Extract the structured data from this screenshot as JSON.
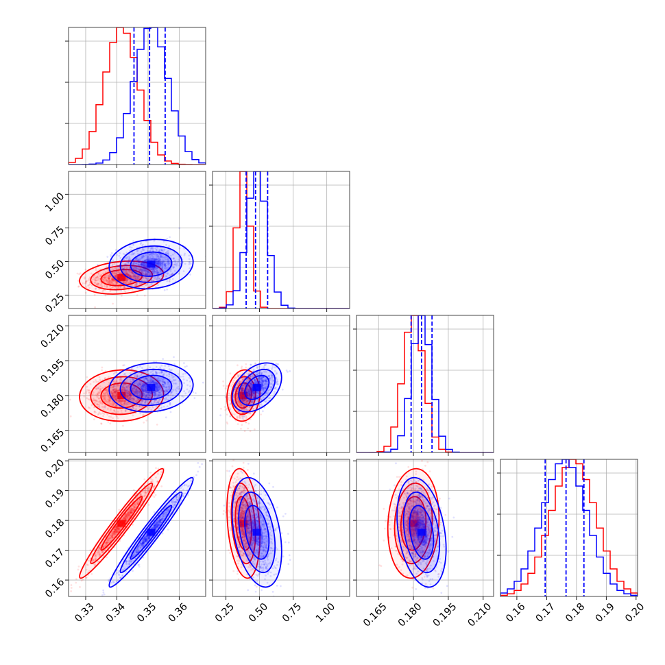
{
  "chart_data": {
    "type": "corner",
    "parameters": 4,
    "grid": true,
    "series": [
      {
        "color": "#ff0000",
        "mean": [
          0.3415,
          0.38,
          0.18,
          0.179
        ],
        "sd": [
          0.0055,
          0.05,
          0.0045,
          0.0075
        ],
        "corr": [
          [
            1,
            0.2,
            0.05,
            0.97
          ],
          [
            0.2,
            1,
            0.1,
            -0.25
          ],
          [
            0.05,
            0.1,
            1,
            0.1
          ],
          [
            0.97,
            -0.25,
            0.1,
            1
          ]
        ]
      },
      {
        "color": "#0000ff",
        "mean": [
          0.351,
          0.48,
          0.1835,
          0.176
        ],
        "sd": [
          0.0055,
          0.075,
          0.0043,
          0.0075
        ],
        "corr": [
          [
            1,
            0.1,
            0.1,
            0.97
          ],
          [
            0.1,
            1,
            0.4,
            -0.35
          ],
          [
            0.1,
            0.4,
            1,
            -0.3
          ],
          [
            0.97,
            -0.35,
            -0.3,
            1
          ]
        ]
      }
    ],
    "quantiles": [
      [
        0.3455,
        0.3505,
        0.3555
      ],
      [
        0.4,
        0.47,
        0.56
      ],
      [
        0.179,
        0.1835,
        0.188
      ],
      [
        0.1695,
        0.1765,
        0.1825
      ]
    ],
    "axes": [
      {
        "lim": [
          0.3245,
          0.3685
        ],
        "ticks": [
          0.33,
          0.34,
          0.35,
          0.36
        ],
        "labels": [
          "0.33",
          "0.34",
          "0.35",
          "0.36"
        ]
      },
      {
        "lim": [
          0.15,
          1.17
        ],
        "ticks": [
          0.25,
          0.5,
          0.75,
          1.0
        ],
        "labels": [
          "0.25",
          "0.50",
          "0.75",
          "1.00"
        ]
      },
      {
        "lim": [
          0.1555,
          0.2145
        ],
        "ticks": [
          0.165,
          0.18,
          0.195,
          0.21
        ],
        "labels": [
          "0.165",
          "0.180",
          "0.195",
          "0.210"
        ]
      },
      {
        "lim": [
          0.1545,
          0.2005
        ],
        "ticks": [
          0.16,
          0.17,
          0.18,
          0.19,
          0.2
        ],
        "labels": [
          "0.16",
          "0.17",
          "0.18",
          "0.19",
          "0.20"
        ]
      }
    ]
  }
}
